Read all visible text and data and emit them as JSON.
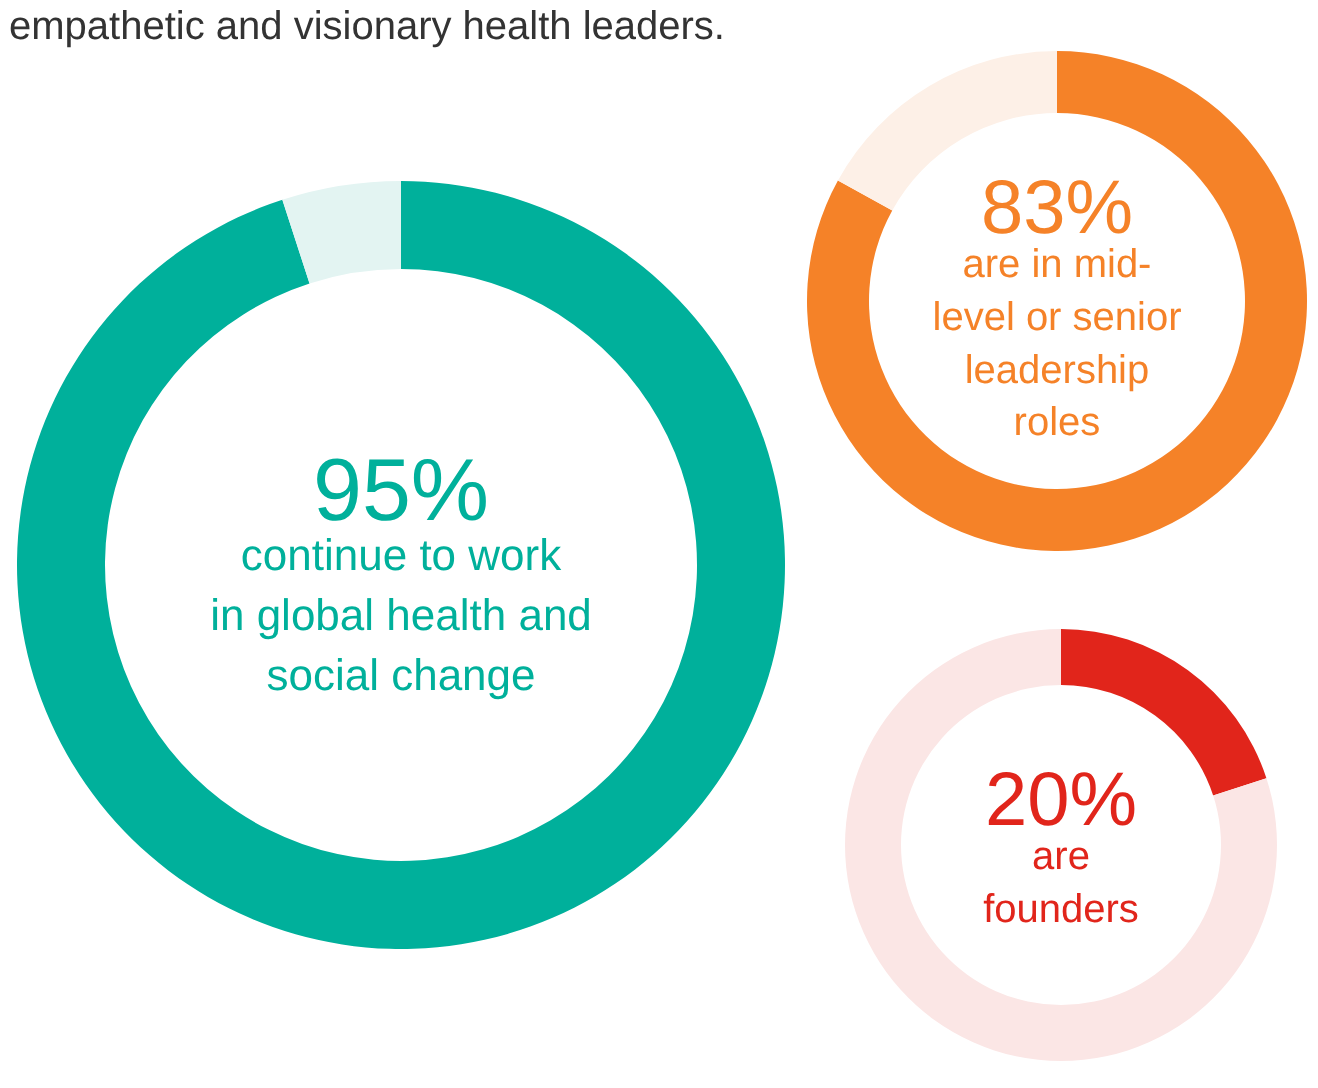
{
  "chart_data": [
    {
      "type": "donut",
      "title": "empathetic and visionary health leaders.",
      "categories": [
        null,
        null
      ],
      "values": [
        95,
        5
      ],
      "colors": [
        "#00b09b",
        "#e3f4f2"
      ],
      "annotations": [
        "95%",
        "continue to work\nin global health and\nsocial change"
      ]
    },
    {
      "type": "donut",
      "categories": [
        null,
        null
      ],
      "values": [
        83,
        17
      ],
      "colors": [
        "#f58228",
        "#fdf0e7"
      ],
      "annotations": [
        "83%",
        "are in mid-\nlevel or senior\nleadership\nroles"
      ]
    },
    {
      "type": "donut",
      "categories": [
        null,
        null
      ],
      "values": [
        20,
        80
      ],
      "colors": [
        "#e1251b",
        "#fbe6e5"
      ],
      "annotations": [
        "20%",
        "are\nfounders"
      ]
    }
  ]
}
